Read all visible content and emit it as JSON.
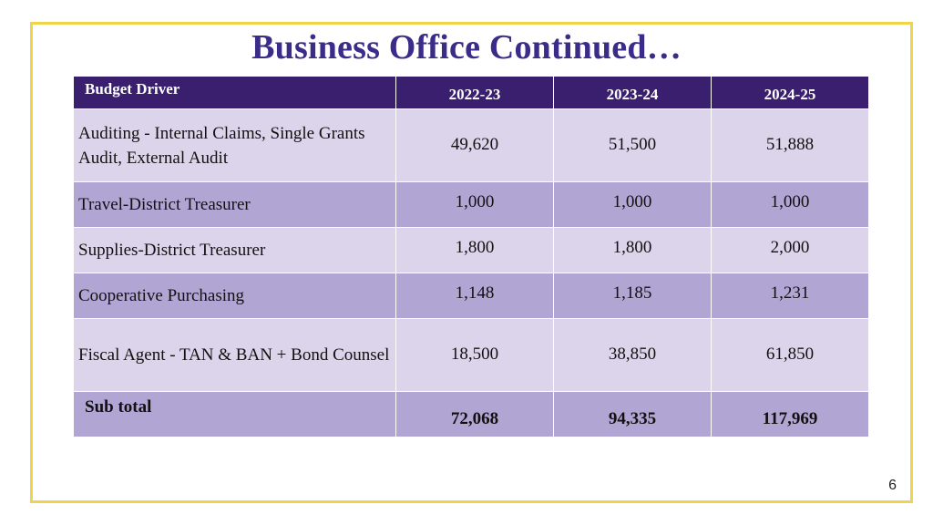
{
  "slide": {
    "title": "Business Office Continued…",
    "page_number": "6"
  },
  "table": {
    "headers": [
      "Budget Driver",
      "2022-23",
      "2023-24",
      "2024-25"
    ],
    "rows": [
      {
        "label": "Auditing - Internal Claims, Single Grants Audit, External Audit",
        "values": [
          "49,620",
          "51,500",
          "51,888"
        ]
      },
      {
        "label": "Travel-District Treasurer",
        "values": [
          "1,000",
          "1,000",
          "1,000"
        ]
      },
      {
        "label": "Supplies-District Treasurer",
        "values": [
          "1,800",
          "1,800",
          "2,000"
        ]
      },
      {
        "label": "Cooperative Purchasing",
        "values": [
          "1,148",
          "1,185",
          "1,231"
        ]
      },
      {
        "label": "Fiscal Agent - TAN & BAN + Bond Counsel",
        "values": [
          "18,500",
          "38,850",
          "61,850"
        ]
      }
    ],
    "subtotal": {
      "label": "Sub total",
      "values": [
        "72,068",
        "94,335",
        "117,969"
      ]
    }
  },
  "colors": {
    "title": "#3b2c8a",
    "header_bg": "#3a1f6e",
    "row_light": "#dcd4ea",
    "row_dark": "#b1a6d3",
    "frame_border": "#f0d44a"
  }
}
